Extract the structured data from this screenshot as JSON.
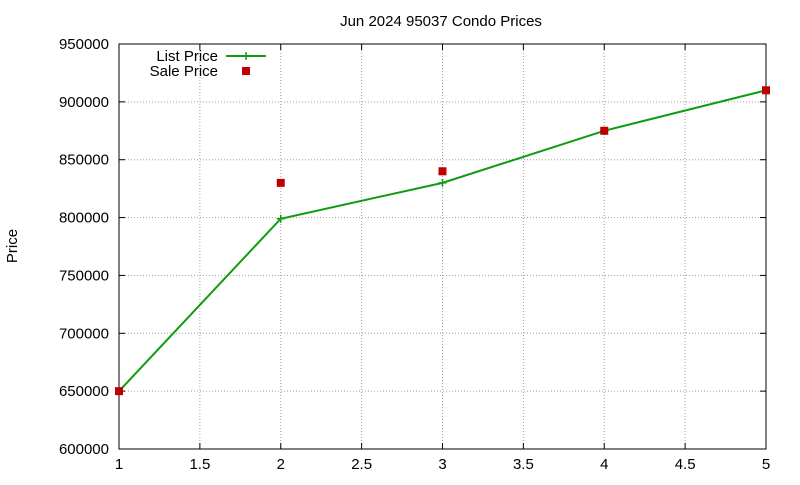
{
  "chart_data": {
    "type": "line",
    "title": "Jun 2024 95037 Condo Prices",
    "xlabel": "",
    "ylabel": "Price",
    "xlim": [
      1,
      5
    ],
    "ylim": [
      600000,
      950000
    ],
    "x_ticks": [
      "1",
      "1.5",
      "2",
      "2.5",
      "3",
      "3.5",
      "4",
      "4.5",
      "5"
    ],
    "y_ticks": [
      "600000",
      "650000",
      "700000",
      "750000",
      "800000",
      "850000",
      "900000",
      "950000"
    ],
    "grid": true,
    "legend_position": "top-left",
    "series": [
      {
        "name": "List Price",
        "style": "line-with-plus-markers",
        "color": "#109c10",
        "x": [
          1,
          2,
          3,
          4,
          5
        ],
        "values": [
          650000,
          799000,
          830000,
          875000,
          910000
        ]
      },
      {
        "name": "Sale Price",
        "style": "square-markers",
        "color": "#c00000",
        "x": [
          1,
          2,
          3,
          4,
          5
        ],
        "values": [
          650000,
          830000,
          840000,
          875000,
          910000
        ]
      }
    ]
  }
}
